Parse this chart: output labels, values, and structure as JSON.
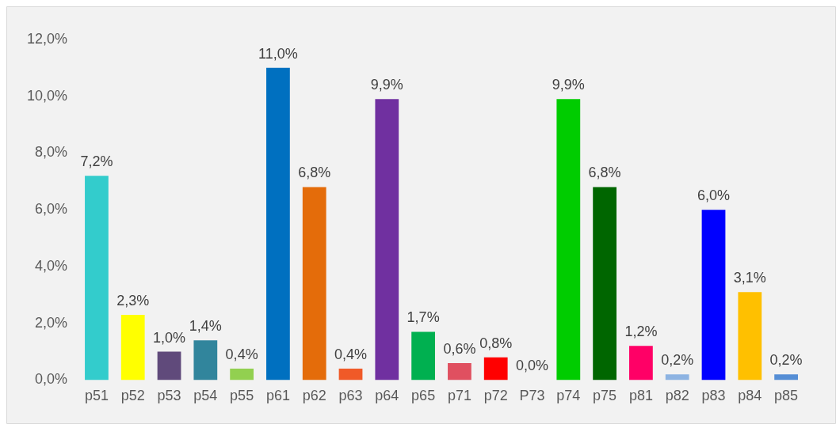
{
  "chart_data": {
    "type": "bar",
    "categories": [
      "p51",
      "p52",
      "p53",
      "p54",
      "p55",
      "p61",
      "p62",
      "p63",
      "p64",
      "p65",
      "p71",
      "p72",
      "P73",
      "p74",
      "p75",
      "p81",
      "p82",
      "p83",
      "p84",
      "p85"
    ],
    "values": [
      7.2,
      2.3,
      1.0,
      1.4,
      0.4,
      11.0,
      6.8,
      0.4,
      9.9,
      1.7,
      0.6,
      0.8,
      0.0,
      9.9,
      6.8,
      1.2,
      0.2,
      6.0,
      3.1,
      0.2
    ],
    "value_labels": [
      "7,2%",
      "2,3%",
      "1,0%",
      "1,4%",
      "0,4%",
      "11,0%",
      "6,8%",
      "0,4%",
      "9,9%",
      "1,7%",
      "0,6%",
      "0,8%",
      "0,0%",
      "9,9%",
      "6,8%",
      "1,2%",
      "0,2%",
      "6,0%",
      "3,1%",
      "0,2%"
    ],
    "colors": [
      "#33cccc",
      "#ffff00",
      "#604a7b",
      "#31859c",
      "#92d050",
      "#0070c0",
      "#e46c0a",
      "#f05a28",
      "#7030a0",
      "#00b050",
      "#e05060",
      "#ff0000",
      "#7f3f00",
      "#00cc00",
      "#006600",
      "#ff0066",
      "#8db3e2",
      "#0000ff",
      "#ffc000",
      "#558ed5"
    ],
    "ylim": [
      0,
      12
    ],
    "yticks": [
      {
        "value": 0,
        "label": "0,0%"
      },
      {
        "value": 2,
        "label": "2,0%"
      },
      {
        "value": 4,
        "label": "4,0%"
      },
      {
        "value": 6,
        "label": "6,0%"
      },
      {
        "value": 8,
        "label": "8,0%"
      },
      {
        "value": 10,
        "label": "10,0%"
      },
      {
        "value": 12,
        "label": "12,0%"
      }
    ],
    "grid": false,
    "legend": false
  }
}
